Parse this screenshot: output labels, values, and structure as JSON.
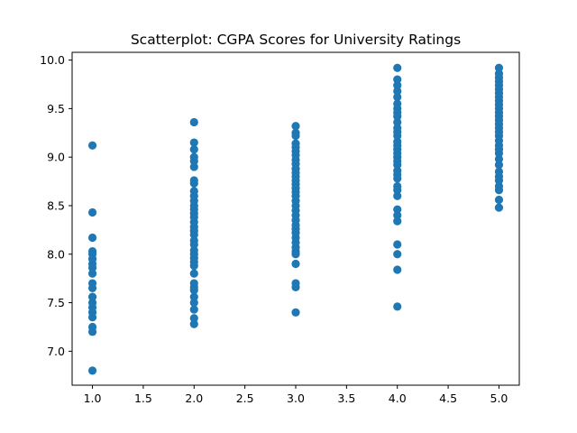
{
  "chart_data": {
    "type": "scatter",
    "title": "Scatterplot: CGPA Scores for University Ratings",
    "xlabel": "",
    "ylabel": "",
    "xlim": [
      0.8,
      5.2
    ],
    "ylim": [
      6.65,
      10.08
    ],
    "grid": false,
    "marker_color": "#1f77b4",
    "x_ticks": [
      1.0,
      1.5,
      2.0,
      2.5,
      3.0,
      3.5,
      4.0,
      4.5,
      5.0
    ],
    "x_tick_labels": [
      "1.0",
      "1.5",
      "2.0",
      "2.5",
      "3.0",
      "3.5",
      "4.0",
      "4.5",
      "5.0"
    ],
    "y_ticks": [
      7.0,
      7.5,
      8.0,
      8.5,
      9.0,
      9.5,
      10.0
    ],
    "y_tick_labels": [
      "7.0",
      "7.5",
      "8.0",
      "8.5",
      "9.0",
      "9.5",
      "10.0"
    ],
    "series": [
      {
        "x": 1,
        "y": [
          6.8,
          7.2,
          7.25,
          7.35,
          7.4,
          7.45,
          7.5,
          7.56,
          7.65,
          7.7,
          7.8,
          7.86,
          7.9,
          7.95,
          8.0,
          8.03,
          8.17,
          8.43,
          9.12
        ]
      },
      {
        "x": 2,
        "y": [
          7.28,
          7.34,
          7.43,
          7.5,
          7.56,
          7.63,
          7.66,
          7.7,
          7.8,
          7.88,
          7.92,
          7.96,
          8.0,
          8.04,
          8.1,
          8.14,
          8.2,
          8.24,
          8.28,
          8.33,
          8.38,
          8.42,
          8.46,
          8.5,
          8.55,
          8.6,
          8.65,
          8.73,
          8.76,
          8.9,
          8.96,
          9.0,
          9.08,
          9.15,
          9.36
        ]
      },
      {
        "x": 3,
        "y": [
          7.4,
          7.66,
          7.7,
          7.9,
          8.0,
          8.03,
          8.07,
          8.12,
          8.17,
          8.22,
          8.26,
          8.3,
          8.35,
          8.4,
          8.45,
          8.5,
          8.55,
          8.6,
          8.64,
          8.68,
          8.72,
          8.76,
          8.8,
          8.84,
          8.88,
          8.93,
          8.97,
          9.02,
          9.06,
          9.1,
          9.14,
          9.22,
          9.25,
          9.32
        ]
      },
      {
        "x": 4,
        "y": [
          7.46,
          7.84,
          8.0,
          8.1,
          8.34,
          8.4,
          8.46,
          8.6,
          8.66,
          8.7,
          8.78,
          8.82,
          8.86,
          8.92,
          8.96,
          9.0,
          9.04,
          9.08,
          9.12,
          9.16,
          9.22,
          9.26,
          9.3,
          9.36,
          9.42,
          9.46,
          9.5,
          9.55,
          9.62,
          9.68,
          9.74,
          9.8,
          9.92
        ]
      },
      {
        "x": 5,
        "y": [
          8.48,
          8.56,
          8.66,
          8.7,
          8.76,
          8.8,
          8.85,
          8.92,
          8.98,
          9.04,
          9.08,
          9.12,
          9.17,
          9.22,
          9.26,
          9.3,
          9.34,
          9.38,
          9.42,
          9.46,
          9.5,
          9.54,
          9.58,
          9.62,
          9.66,
          9.7,
          9.74,
          9.78,
          9.82,
          9.86,
          9.92
        ]
      }
    ]
  }
}
